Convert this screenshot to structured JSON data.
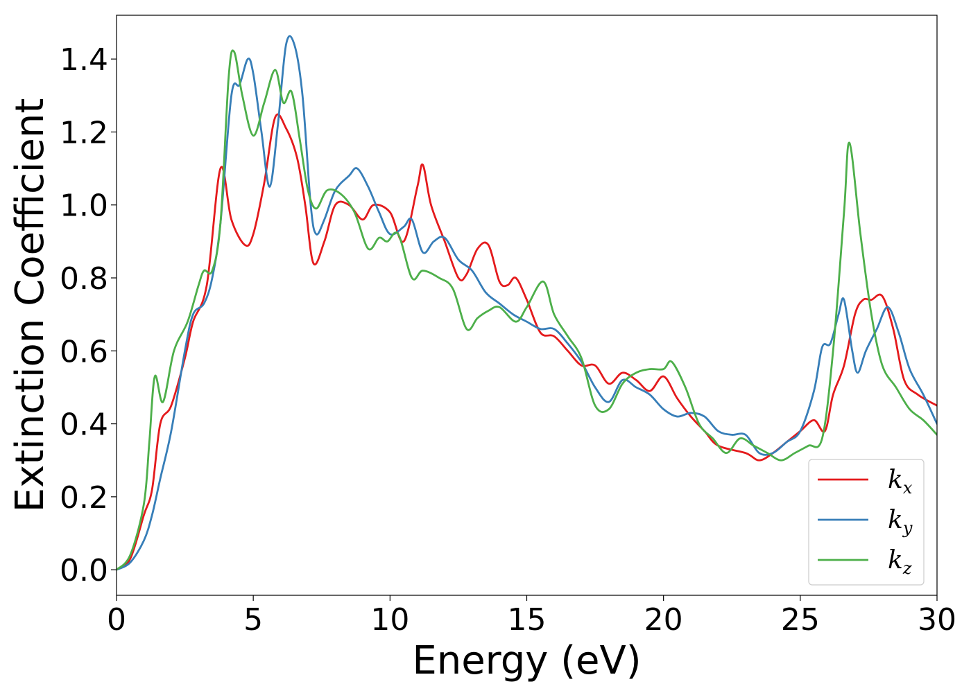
{
  "chart_data": {
    "type": "line",
    "xlabel": "Energy (eV)",
    "ylabel": "Extinction Coefficient",
    "xlim": [
      0,
      30
    ],
    "ylim": [
      -0.07,
      1.52
    ],
    "xticks": [
      0,
      5,
      10,
      15,
      20,
      25,
      30
    ],
    "xtick_labels": [
      "0",
      "5",
      "10",
      "15",
      "20",
      "25",
      "30"
    ],
    "yticks": [
      0.0,
      0.2,
      0.4,
      0.6,
      0.8,
      1.0,
      1.2,
      1.4
    ],
    "ytick_labels": [
      "0.0",
      "0.2",
      "0.4",
      "0.6",
      "0.8",
      "1.0",
      "1.2",
      "1.4"
    ],
    "grid": false,
    "legend": {
      "placement": "lower-right"
    },
    "series": [
      {
        "name": "k_x",
        "label_base": "k",
        "label_sub": "x",
        "color": "#e41a1c",
        "points": [
          [
            0,
            0
          ],
          [
            0.5,
            0.03
          ],
          [
            1.0,
            0.15
          ],
          [
            1.3,
            0.22
          ],
          [
            1.6,
            0.4
          ],
          [
            2.0,
            0.45
          ],
          [
            2.5,
            0.58
          ],
          [
            2.8,
            0.68
          ],
          [
            3.3,
            0.78
          ],
          [
            3.8,
            1.1
          ],
          [
            4.2,
            0.96
          ],
          [
            4.7,
            0.89
          ],
          [
            5.0,
            0.92
          ],
          [
            5.4,
            1.06
          ],
          [
            5.8,
            1.24
          ],
          [
            6.2,
            1.21
          ],
          [
            6.6,
            1.13
          ],
          [
            6.9,
            1.0
          ],
          [
            7.2,
            0.84
          ],
          [
            7.6,
            0.9
          ],
          [
            8.0,
            1.0
          ],
          [
            8.5,
            1.0
          ],
          [
            9.0,
            0.96
          ],
          [
            9.4,
            1.0
          ],
          [
            10.0,
            0.98
          ],
          [
            10.5,
            0.9
          ],
          [
            11.0,
            1.05
          ],
          [
            11.2,
            1.11
          ],
          [
            11.5,
            1.0
          ],
          [
            12.0,
            0.9
          ],
          [
            12.5,
            0.8
          ],
          [
            12.8,
            0.81
          ],
          [
            13.2,
            0.88
          ],
          [
            13.6,
            0.89
          ],
          [
            14.0,
            0.79
          ],
          [
            14.3,
            0.78
          ],
          [
            14.6,
            0.8
          ],
          [
            15.0,
            0.74
          ],
          [
            15.5,
            0.65
          ],
          [
            16.0,
            0.64
          ],
          [
            16.5,
            0.6
          ],
          [
            17.0,
            0.56
          ],
          [
            17.5,
            0.56
          ],
          [
            18.0,
            0.51
          ],
          [
            18.5,
            0.54
          ],
          [
            19.0,
            0.52
          ],
          [
            19.5,
            0.49
          ],
          [
            20.0,
            0.53
          ],
          [
            20.5,
            0.47
          ],
          [
            21.0,
            0.42
          ],
          [
            21.5,
            0.38
          ],
          [
            22.0,
            0.34
          ],
          [
            23.0,
            0.32
          ],
          [
            23.5,
            0.3
          ],
          [
            24.0,
            0.32
          ],
          [
            24.5,
            0.35
          ],
          [
            25.0,
            0.38
          ],
          [
            25.5,
            0.41
          ],
          [
            25.9,
            0.38
          ],
          [
            26.2,
            0.48
          ],
          [
            26.6,
            0.56
          ],
          [
            27.0,
            0.7
          ],
          [
            27.3,
            0.74
          ],
          [
            27.6,
            0.74
          ],
          [
            28.0,
            0.75
          ],
          [
            28.4,
            0.66
          ],
          [
            28.8,
            0.52
          ],
          [
            29.3,
            0.48
          ],
          [
            30.0,
            0.45
          ]
        ]
      },
      {
        "name": "k_y",
        "label_base": "k",
        "label_sub": "y",
        "color": "#377eb8",
        "points": [
          [
            0,
            0
          ],
          [
            0.5,
            0.02
          ],
          [
            1.0,
            0.08
          ],
          [
            1.3,
            0.15
          ],
          [
            1.6,
            0.25
          ],
          [
            2.0,
            0.38
          ],
          [
            2.5,
            0.6
          ],
          [
            2.8,
            0.7
          ],
          [
            3.2,
            0.73
          ],
          [
            3.5,
            0.8
          ],
          [
            3.8,
            0.95
          ],
          [
            4.2,
            1.3
          ],
          [
            4.5,
            1.33
          ],
          [
            4.8,
            1.4
          ],
          [
            5.0,
            1.36
          ],
          [
            5.3,
            1.2
          ],
          [
            5.6,
            1.05
          ],
          [
            5.9,
            1.22
          ],
          [
            6.2,
            1.44
          ],
          [
            6.5,
            1.44
          ],
          [
            6.8,
            1.3
          ],
          [
            7.1,
            1.0
          ],
          [
            7.3,
            0.92
          ],
          [
            7.6,
            0.96
          ],
          [
            8.0,
            1.04
          ],
          [
            8.5,
            1.08
          ],
          [
            8.8,
            1.1
          ],
          [
            9.2,
            1.05
          ],
          [
            9.6,
            0.98
          ],
          [
            10.0,
            0.92
          ],
          [
            10.5,
            0.94
          ],
          [
            10.8,
            0.96
          ],
          [
            11.2,
            0.87
          ],
          [
            11.6,
            0.9
          ],
          [
            12.0,
            0.91
          ],
          [
            12.5,
            0.85
          ],
          [
            13.0,
            0.82
          ],
          [
            13.5,
            0.76
          ],
          [
            14.0,
            0.73
          ],
          [
            14.5,
            0.7
          ],
          [
            15.0,
            0.68
          ],
          [
            15.5,
            0.66
          ],
          [
            16.0,
            0.66
          ],
          [
            16.5,
            0.62
          ],
          [
            17.0,
            0.57
          ],
          [
            17.5,
            0.5
          ],
          [
            18.0,
            0.46
          ],
          [
            18.5,
            0.52
          ],
          [
            19.0,
            0.5
          ],
          [
            19.5,
            0.48
          ],
          [
            20.0,
            0.44
          ],
          [
            20.5,
            0.42
          ],
          [
            21.0,
            0.43
          ],
          [
            21.5,
            0.42
          ],
          [
            22.0,
            0.38
          ],
          [
            22.5,
            0.37
          ],
          [
            23.0,
            0.37
          ],
          [
            23.5,
            0.32
          ],
          [
            24.0,
            0.32
          ],
          [
            24.5,
            0.35
          ],
          [
            25.0,
            0.38
          ],
          [
            25.5,
            0.49
          ],
          [
            25.8,
            0.61
          ],
          [
            26.1,
            0.62
          ],
          [
            26.4,
            0.7
          ],
          [
            26.6,
            0.74
          ],
          [
            26.9,
            0.6
          ],
          [
            27.1,
            0.54
          ],
          [
            27.4,
            0.6
          ],
          [
            27.8,
            0.66
          ],
          [
            28.2,
            0.72
          ],
          [
            28.6,
            0.65
          ],
          [
            29.0,
            0.55
          ],
          [
            29.5,
            0.48
          ],
          [
            30.0,
            0.4
          ]
        ]
      },
      {
        "name": "k_z",
        "label_base": "k",
        "label_sub": "z",
        "color": "#4daf4a",
        "points": [
          [
            0,
            0
          ],
          [
            0.5,
            0.04
          ],
          [
            1.0,
            0.18
          ],
          [
            1.2,
            0.35
          ],
          [
            1.4,
            0.53
          ],
          [
            1.7,
            0.46
          ],
          [
            2.1,
            0.6
          ],
          [
            2.6,
            0.68
          ],
          [
            3.0,
            0.78
          ],
          [
            3.2,
            0.82
          ],
          [
            3.5,
            0.82
          ],
          [
            3.8,
            0.95
          ],
          [
            4.1,
            1.35
          ],
          [
            4.3,
            1.42
          ],
          [
            4.6,
            1.3
          ],
          [
            5.0,
            1.19
          ],
          [
            5.4,
            1.28
          ],
          [
            5.8,
            1.37
          ],
          [
            6.1,
            1.28
          ],
          [
            6.4,
            1.31
          ],
          [
            6.7,
            1.18
          ],
          [
            7.0,
            1.04
          ],
          [
            7.3,
            0.99
          ],
          [
            7.7,
            1.04
          ],
          [
            8.2,
            1.03
          ],
          [
            8.7,
            0.98
          ],
          [
            9.2,
            0.88
          ],
          [
            9.6,
            0.91
          ],
          [
            9.9,
            0.9
          ],
          [
            10.3,
            0.92
          ],
          [
            10.8,
            0.8
          ],
          [
            11.2,
            0.82
          ],
          [
            11.8,
            0.8
          ],
          [
            12.3,
            0.77
          ],
          [
            12.8,
            0.66
          ],
          [
            13.2,
            0.69
          ],
          [
            13.6,
            0.71
          ],
          [
            14.0,
            0.72
          ],
          [
            14.6,
            0.68
          ],
          [
            15.0,
            0.72
          ],
          [
            15.6,
            0.79
          ],
          [
            16.0,
            0.7
          ],
          [
            16.5,
            0.64
          ],
          [
            17.0,
            0.58
          ],
          [
            17.5,
            0.45
          ],
          [
            18.0,
            0.44
          ],
          [
            18.5,
            0.51
          ],
          [
            19.0,
            0.54
          ],
          [
            19.5,
            0.55
          ],
          [
            20.0,
            0.55
          ],
          [
            20.3,
            0.57
          ],
          [
            20.8,
            0.5
          ],
          [
            21.3,
            0.4
          ],
          [
            21.8,
            0.36
          ],
          [
            22.3,
            0.32
          ],
          [
            22.8,
            0.36
          ],
          [
            23.3,
            0.34
          ],
          [
            23.8,
            0.32
          ],
          [
            24.3,
            0.3
          ],
          [
            24.8,
            0.32
          ],
          [
            25.3,
            0.34
          ],
          [
            25.8,
            0.36
          ],
          [
            26.2,
            0.6
          ],
          [
            26.6,
            0.98
          ],
          [
            26.8,
            1.17
          ],
          [
            27.2,
            0.92
          ],
          [
            27.6,
            0.7
          ],
          [
            28.0,
            0.56
          ],
          [
            28.5,
            0.5
          ],
          [
            29.0,
            0.44
          ],
          [
            29.5,
            0.41
          ],
          [
            30.0,
            0.37
          ]
        ]
      }
    ]
  }
}
